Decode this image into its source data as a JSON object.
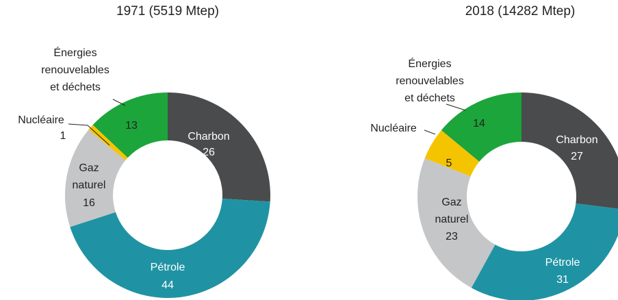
{
  "chart_data": [
    {
      "type": "donut",
      "title": "1971 (5519 Mtep)",
      "categories": [
        "Charbon",
        "Pétrole",
        "Gaz naturel",
        "Nucléaire",
        "Énergies renouvelables et déchets"
      ],
      "values": [
        26,
        44,
        16,
        1,
        13
      ],
      "colors": [
        "#4a4b4c",
        "#1f93a3",
        "#c5c6c8",
        "#f5c400",
        "#1ca53b"
      ]
    },
    {
      "type": "donut",
      "title": "2018 (14282 Mtep)",
      "categories": [
        "Charbon",
        "Pétrole",
        "Gaz naturel",
        "Nucléaire",
        "Énergies renouvelables et déchets"
      ],
      "values": [
        27,
        31,
        23,
        5,
        14
      ],
      "colors": [
        "#4a4b4c",
        "#1f93a3",
        "#c5c6c8",
        "#f5c400",
        "#1ca53b"
      ]
    }
  ]
}
